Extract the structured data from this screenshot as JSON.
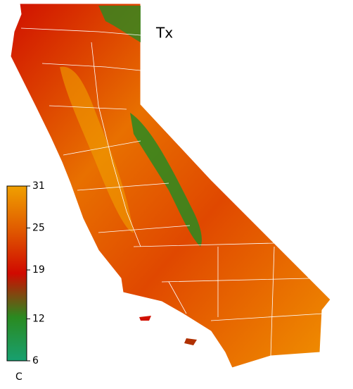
{
  "map": {
    "title": "Tx",
    "colorbar": {
      "unit": "C",
      "lim": [
        6,
        31
      ],
      "ticks": [
        31,
        25,
        19,
        12,
        6
      ],
      "colors": [
        "#18a070",
        "#2a8a20",
        "#d00a00",
        "#e05a00",
        "#f0a000"
      ]
    }
  }
}
